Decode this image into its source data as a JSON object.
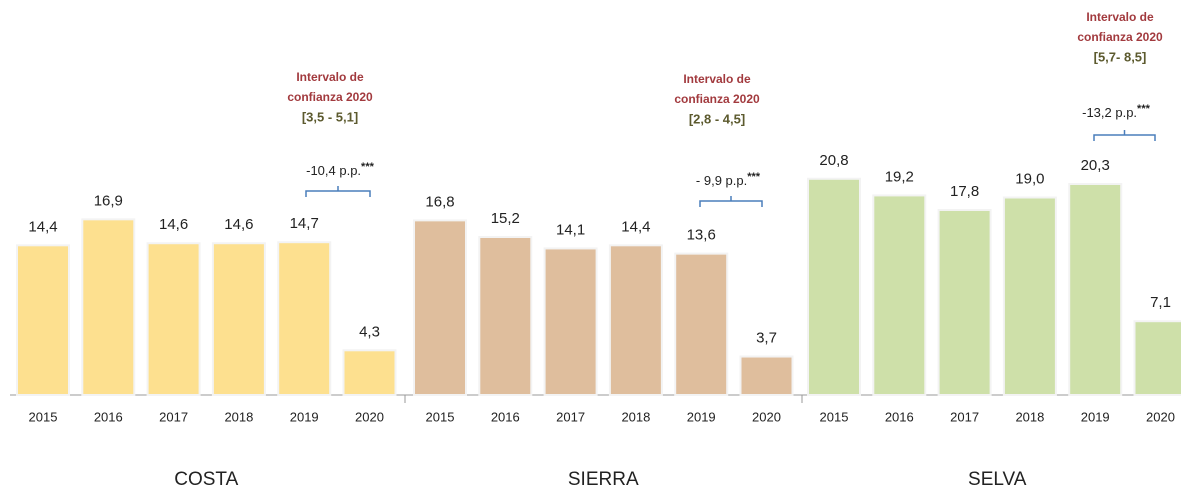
{
  "chart_data": [
    {
      "type": "bar",
      "title": "COSTA",
      "categories": [
        "2015",
        "2016",
        "2017",
        "2018",
        "2019",
        "2020"
      ],
      "values": [
        14.4,
        16.9,
        14.6,
        14.6,
        14.7,
        4.3
      ],
      "value_labels": [
        "14,4",
        "16,9",
        "14,6",
        "14,6",
        "14,7",
        "4,3"
      ],
      "color": "#fde08f",
      "ylim": [
        0,
        38
      ],
      "annotation": {
        "ci_title": [
          "Intervalo de",
          "confianza 2020"
        ],
        "ci_range": "[3,5 - 5,1]",
        "difference": "-10,4 p.p.",
        "significance": "***"
      }
    },
    {
      "type": "bar",
      "title": "SIERRA",
      "categories": [
        "2015",
        "2016",
        "2017",
        "2018",
        "2019",
        "2020"
      ],
      "values": [
        16.8,
        15.2,
        14.1,
        14.4,
        13.6,
        3.7
      ],
      "value_labels": [
        "16,8",
        "15,2",
        "14,1",
        "14,4",
        "13,6",
        "3,7"
      ],
      "color": "#dfbe9d",
      "ylim": [
        0,
        38
      ],
      "annotation": {
        "ci_title": [
          "Intervalo de",
          "confianza 2020"
        ],
        "ci_range": "[2,8 - 4,5]",
        "difference": "- 9,9 p.p.",
        "significance": "***"
      }
    },
    {
      "type": "bar",
      "title": "SELVA",
      "categories": [
        "2015",
        "2016",
        "2017",
        "2018",
        "2019",
        "2020"
      ],
      "values": [
        20.8,
        19.2,
        17.8,
        19.0,
        20.3,
        7.1
      ],
      "value_labels": [
        "20,8",
        "19,2",
        "17,8",
        "19,0",
        "20,3",
        "7,1"
      ],
      "color": "#cee0a9",
      "ylim": [
        0,
        38
      ],
      "annotation": {
        "ci_title": [
          "Intervalo de",
          "confianza 2020"
        ],
        "ci_range": "[5,7-  8,5]",
        "difference": "-13,2 p.p.",
        "significance": "***"
      }
    }
  ]
}
